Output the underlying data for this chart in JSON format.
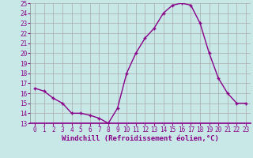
{
  "x": [
    0,
    1,
    2,
    3,
    4,
    5,
    6,
    7,
    8,
    9,
    10,
    11,
    12,
    13,
    14,
    15,
    16,
    17,
    18,
    19,
    20,
    21,
    22,
    23
  ],
  "y": [
    16.5,
    16.2,
    15.5,
    15.0,
    14.0,
    14.0,
    13.8,
    13.5,
    13.0,
    14.5,
    18.0,
    20.0,
    21.5,
    22.5,
    24.0,
    24.8,
    25.0,
    24.8,
    23.0,
    20.0,
    17.5,
    16.0,
    15.0,
    15.0
  ],
  "line_color": "#880088",
  "marker": "+",
  "background_color": "#c8e8e8",
  "grid_color": "#aaaaaa",
  "xlabel": "Windchill (Refroidissement éolien,°C)",
  "xlabel_color": "#880088",
  "ylim": [
    13,
    25
  ],
  "xlim": [
    -0.5,
    23.5
  ],
  "yticks": [
    13,
    14,
    15,
    16,
    17,
    18,
    19,
    20,
    21,
    22,
    23,
    24,
    25
  ],
  "xticks": [
    0,
    1,
    2,
    3,
    4,
    5,
    6,
    7,
    8,
    9,
    10,
    11,
    12,
    13,
    14,
    15,
    16,
    17,
    18,
    19,
    20,
    21,
    22,
    23
  ],
  "tick_label_size": 5.5,
  "xlabel_size": 6.5,
  "marker_size": 3.5,
  "line_width": 1.0
}
